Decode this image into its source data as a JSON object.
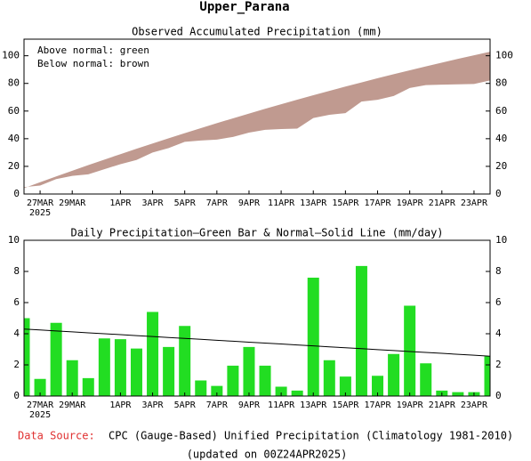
{
  "title": "Upper_Parana",
  "footer": {
    "source_label": "Data Source:",
    "source": "CPC (Gauge-Based) Unified Precipitation (Climatology 1981-2010)",
    "updated": "(updated on 00Z24APR2025)"
  },
  "chart_data": [
    {
      "type": "band",
      "title": "Observed Accumulated Precipitation (mm)",
      "annotations": [
        "Above normal: green",
        "Below normal: brown"
      ],
      "categories": [
        null,
        "27MAR",
        null,
        "29MAR",
        null,
        null,
        "1APR",
        null,
        "3APR",
        null,
        "5APR",
        null,
        "7APR",
        null,
        "9APR",
        null,
        "11APR",
        null,
        "13APR",
        null,
        "15APR",
        null,
        "17APR",
        null,
        "19APR",
        null,
        "21APR",
        null,
        "23APR",
        null
      ],
      "x_year_label": "2025",
      "series": [
        {
          "color": "#c09a90",
          "values": [
            5.0,
            6.1,
            10.8,
            13.1,
            14.25,
            17.95,
            21.6,
            24.65,
            30.05,
            33.2,
            37.7,
            38.7,
            39.35,
            41.3,
            44.45,
            46.4,
            47.0,
            47.35,
            54.95,
            57.25,
            58.5,
            66.85,
            68.15,
            70.85,
            76.65,
            78.75,
            79.1,
            79.35,
            79.6,
            82.15
          ]
        },
        {
          "color": "#c09a90",
          "values": [
            4.3,
            8.54,
            12.72,
            16.84,
            20.9,
            24.9,
            28.84,
            32.72,
            36.54,
            40.3,
            44,
            47.64,
            51.22,
            54.74,
            58.2,
            61.6,
            64.94,
            68.22,
            71.44,
            74.6,
            77.7,
            80.74,
            83.72,
            86.64,
            89.5,
            92.3,
            95.04,
            97.72,
            100.34,
            102.9
          ]
        }
      ],
      "ylim": [
        0,
        112
      ],
      "yticks": [
        0,
        20,
        40,
        60,
        80,
        100
      ]
    },
    {
      "type": "bar",
      "title": "Daily Precipitation—Green Bar & Normal—Solid Line (mm/day)",
      "categories": [
        null,
        "27MAR",
        null,
        "29MAR",
        null,
        null,
        "1APR",
        null,
        "3APR",
        null,
        "5APR",
        null,
        "7APR",
        null,
        "9APR",
        null,
        "11APR",
        null,
        "13APR",
        null,
        "15APR",
        null,
        "17APR",
        null,
        "19APR",
        null,
        "21APR",
        null,
        "23APR",
        null
      ],
      "x_year_label": "2025",
      "series": [
        {
          "type": "bar",
          "color": "#22dd22",
          "values": [
            5.0,
            1.1,
            4.7,
            2.3,
            1.15,
            3.7,
            3.65,
            3.05,
            5.4,
            3.15,
            4.5,
            1.0,
            0.65,
            1.95,
            3.15,
            1.95,
            0.6,
            0.35,
            7.6,
            2.3,
            1.25,
            8.35,
            1.3,
            2.7,
            5.8,
            2.1,
            0.35,
            0.25,
            0.25,
            2.55
          ]
        },
        {
          "type": "line",
          "color": "#000000",
          "values": [
            4.3,
            4.24,
            4.18,
            4.12,
            4.06,
            4.0,
            3.94,
            3.88,
            3.82,
            3.76,
            3.7,
            3.64,
            3.58,
            3.52,
            3.46,
            3.4,
            3.34,
            3.28,
            3.22,
            3.16,
            3.1,
            3.04,
            2.98,
            2.92,
            2.86,
            2.8,
            2.74,
            2.68,
            2.62,
            2.56
          ]
        }
      ],
      "ylim": [
        0,
        10
      ],
      "yticks": [
        0,
        2,
        4,
        6,
        8,
        10
      ]
    }
  ]
}
